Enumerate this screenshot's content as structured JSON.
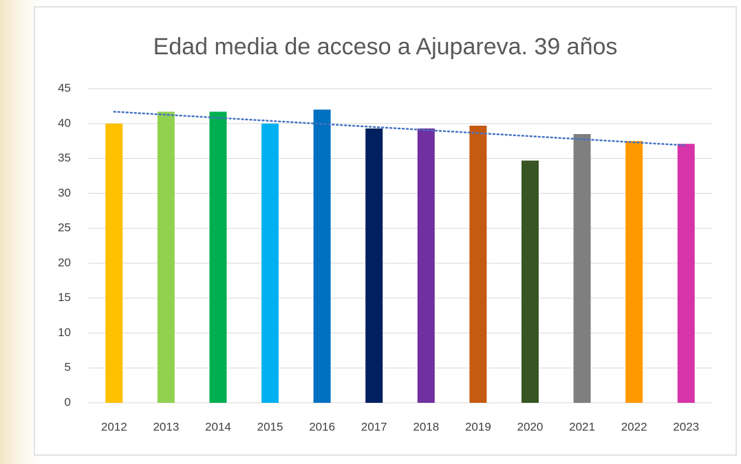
{
  "chart_data": {
    "type": "bar",
    "title": "Edad media de acceso a Ajupareva. 39 años",
    "categories": [
      "2012",
      "2013",
      "2014",
      "2015",
      "2016",
      "2017",
      "2018",
      "2019",
      "2020",
      "2021",
      "2022",
      "2023"
    ],
    "values": [
      40.0,
      41.7,
      41.7,
      40.0,
      42.0,
      39.3,
      39.3,
      39.7,
      34.7,
      38.5,
      37.5,
      37.1
    ],
    "colors": [
      "#ffc000",
      "#92d050",
      "#00b050",
      "#00b0f0",
      "#0070c0",
      "#002060",
      "#7030a0",
      "#c55a11",
      "#375623",
      "#7f7f7f",
      "#ff9900",
      "#d634a8"
    ],
    "ylim": [
      0,
      45
    ],
    "yticks": [
      0,
      5,
      10,
      15,
      20,
      25,
      30,
      35,
      40,
      45
    ],
    "grid": true,
    "trendline": "linear"
  }
}
